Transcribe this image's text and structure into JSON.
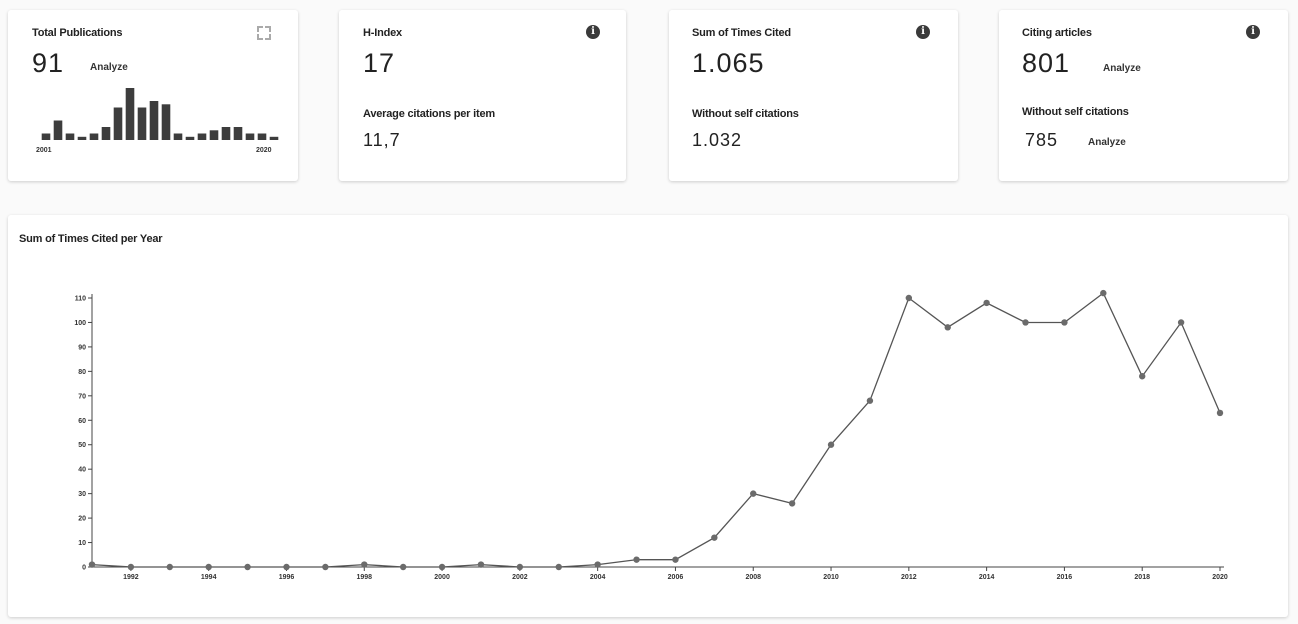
{
  "cards": {
    "publications": {
      "title": "Total Publications",
      "value": "91",
      "analyze": "Analyze",
      "year_start": "2001",
      "year_end": "2020",
      "bars": [
        1,
        3,
        1,
        0.5,
        1,
        2,
        5,
        8,
        5,
        6,
        5.5,
        1,
        0.5,
        1,
        1.5,
        2,
        2,
        1,
        1,
        0.5
      ]
    },
    "h_index": {
      "title": "H-Index",
      "value": "17",
      "avg_title": "Average citations per item",
      "avg_value": "11,7"
    },
    "times_cited": {
      "title": "Sum of Times Cited",
      "value": "1.065",
      "without_title": "Without self citations",
      "without_value": "1.032"
    },
    "citing_articles": {
      "title": "Citing articles",
      "value": "801",
      "analyze": "Analyze",
      "without_title": "Without self citations",
      "without_value": "785",
      "without_analyze": "Analyze"
    }
  },
  "info_icon_glyph": "i",
  "chart_title": "Sum of Times Cited per Year",
  "chart_data": {
    "type": "line",
    "title": "Sum of Times Cited per Year",
    "x": [
      1991,
      1992,
      1993,
      1994,
      1995,
      1996,
      1997,
      1998,
      1999,
      2000,
      2001,
      2002,
      2003,
      2004,
      2005,
      2006,
      2007,
      2008,
      2009,
      2010,
      2011,
      2012,
      2013,
      2014,
      2015,
      2016,
      2017,
      2018,
      2019,
      2020
    ],
    "values": [
      1,
      0,
      0,
      0,
      0,
      0,
      0,
      1,
      0,
      0,
      1,
      0,
      0,
      1,
      3,
      3,
      12,
      30,
      26,
      50,
      68,
      110,
      98,
      108,
      100,
      100,
      112,
      78,
      100,
      63
    ],
    "x_ticks": [
      "1992",
      "1994",
      "1996",
      "1998",
      "2000",
      "2002",
      "2004",
      "2006",
      "2008",
      "2010",
      "2012",
      "2014",
      "2016",
      "2018",
      "2020"
    ],
    "y_ticks": [
      0,
      10,
      20,
      30,
      40,
      50,
      60,
      70,
      80,
      90,
      100,
      110
    ],
    "ylim": [
      0,
      110
    ],
    "line_color": "#555555",
    "marker_color": "#6b6b6b"
  }
}
